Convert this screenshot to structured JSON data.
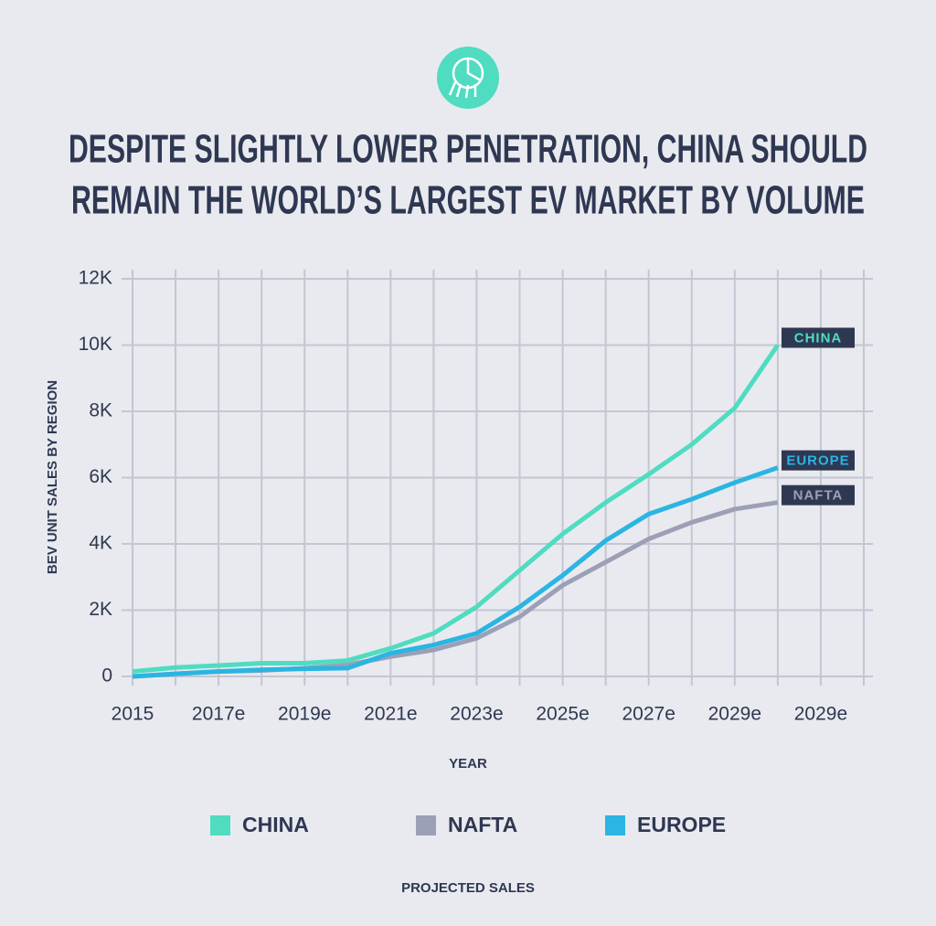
{
  "chart_data": {
    "type": "line",
    "title": [
      "DESPITE SLIGHTLY LOWER PENETRATION, CHINA SHOULD",
      "REMAIN THE WORLD’S LARGEST EV MARKET BY VOLUME"
    ],
    "x_label": "YEAR",
    "y_label": "BEV UNIT SALES BY REGION",
    "footer": "PROJECTED SALES",
    "categories": [
      "2015",
      null,
      "2017e",
      null,
      "2019e",
      null,
      "2021e",
      null,
      "2023e",
      null,
      "2025e",
      null,
      "2027e",
      null,
      "2029e",
      null,
      "2029e",
      null
    ],
    "series": [
      {
        "name": "CHINA",
        "color": "#4fdcc0",
        "values": [
          150,
          270,
          330,
          400,
          400,
          480,
          850,
          1300,
          2100,
          3200,
          4300,
          5250,
          6100,
          7000,
          8100,
          10000,
          null,
          null
        ]
      },
      {
        "name": "NAFTA",
        "color": "#9ca0b6",
        "values": [
          0,
          80,
          150,
          180,
          250,
          350,
          600,
          800,
          1150,
          1800,
          2750,
          3450,
          4150,
          4650,
          5050,
          5250,
          null,
          null
        ]
      },
      {
        "name": "EUROPE",
        "color": "#2ab5e3",
        "values": [
          0,
          80,
          150,
          200,
          230,
          250,
          700,
          950,
          1300,
          2100,
          3050,
          4100,
          4900,
          5350,
          5850,
          6300,
          null,
          null
        ]
      }
    ],
    "annotations": [
      "CHINA",
      "EUROPE",
      "NAFTA"
    ],
    "ylim": [
      0,
      12000
    ],
    "yticks": [
      0,
      {
        "value": 2000,
        "label": "2K"
      },
      {
        "value": 4000,
        "label": "4K"
      },
      {
        "value": 6000,
        "label": "6K"
      },
      {
        "value": 8000,
        "label": "8K"
      },
      {
        "value": 10000,
        "label": "10K"
      },
      {
        "value": 12000,
        "label": "12K"
      }
    ],
    "grid": true
  }
}
